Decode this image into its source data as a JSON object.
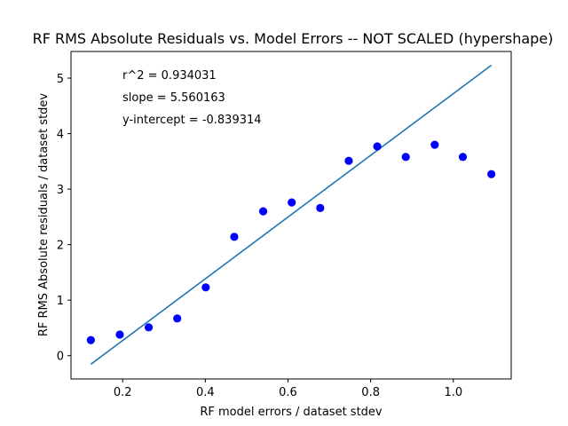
{
  "chart_data": {
    "type": "scatter",
    "title": "RF RMS Absolute Residuals vs. Model Errors -- NOT SCALED (hypershape)",
    "xlabel": "RF model errors / dataset stdev",
    "ylabel": "RF RMS Absolute residuals / dataset stdev",
    "xlim": [
      0.075,
      1.14
    ],
    "ylim": [
      -0.42,
      5.48
    ],
    "xticks": [
      0.2,
      0.4,
      0.6,
      0.8,
      1.0
    ],
    "xtick_labels": [
      "0.2",
      "0.4",
      "0.6",
      "0.8",
      "1.0"
    ],
    "yticks": [
      0,
      1,
      2,
      3,
      4,
      5
    ],
    "ytick_labels": [
      "0",
      "1",
      "2",
      "3",
      "4",
      "5"
    ],
    "grid": false,
    "points": {
      "color": "#0000ff",
      "x": [
        0.123,
        0.193,
        0.263,
        0.332,
        0.401,
        0.47,
        0.54,
        0.609,
        0.678,
        0.747,
        0.816,
        0.885,
        0.955,
        1.023,
        1.092
      ],
      "y": [
        0.28,
        0.38,
        0.51,
        0.67,
        1.23,
        2.14,
        2.6,
        2.76,
        2.66,
        3.51,
        3.77,
        3.58,
        3.8,
        3.58,
        3.27
      ]
    },
    "fit_line": {
      "color": "#1f77b4",
      "x": [
        0.123,
        1.092
      ],
      "slope": 5.560163,
      "intercept": -0.839314
    },
    "annotations": [
      "r^2 = 0.934031",
      "slope = 5.560163",
      "y-intercept = -0.839314"
    ]
  }
}
